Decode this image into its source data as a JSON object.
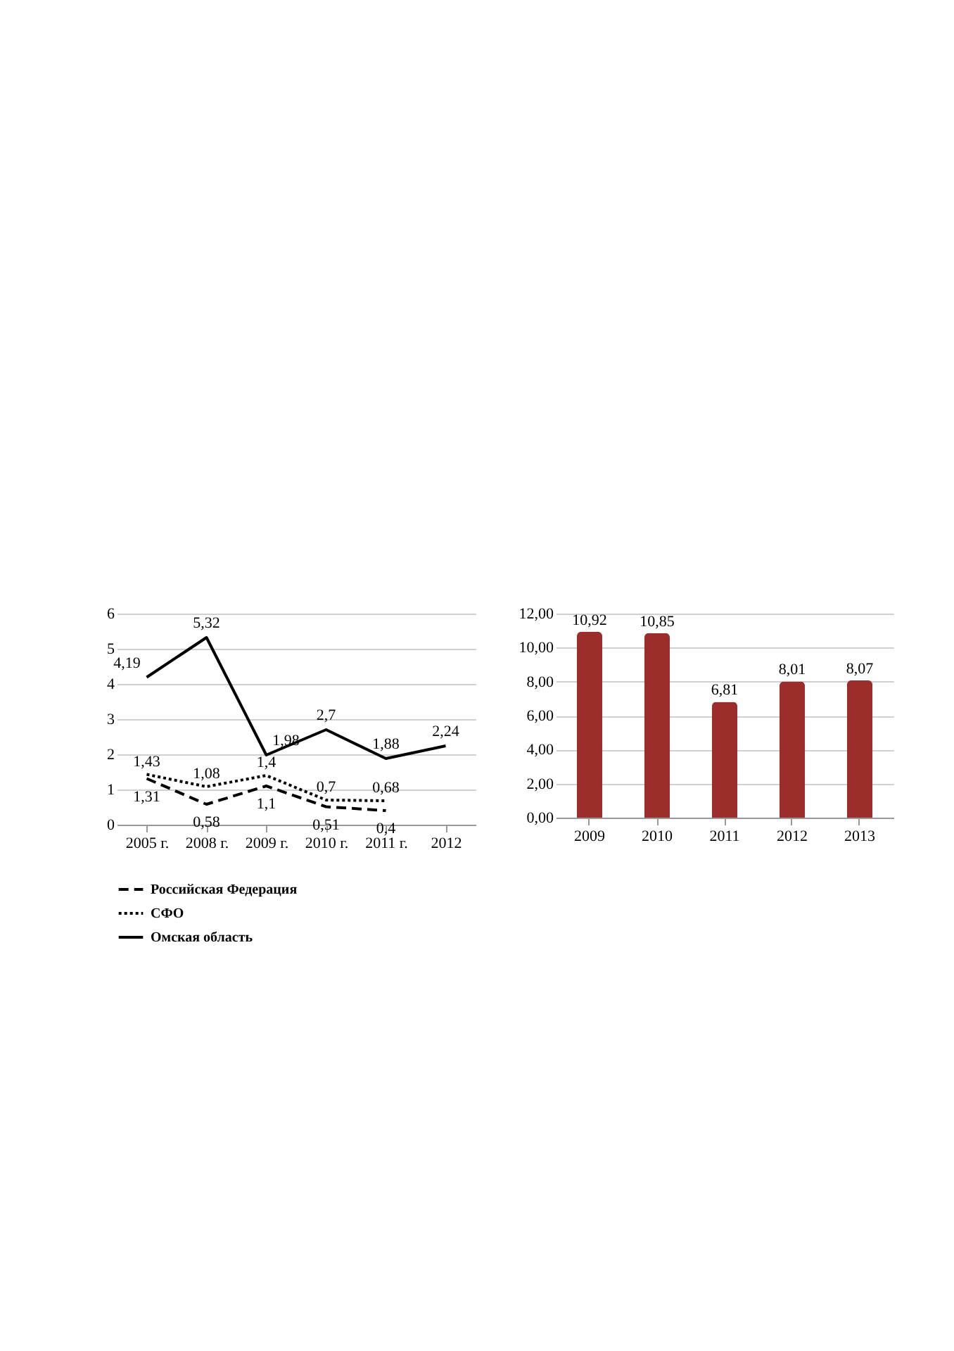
{
  "chart_data": [
    {
      "type": "line",
      "categories": [
        "2005 г.",
        "2008 г.",
        "2009 г.",
        "2010 г.",
        "2011 г.",
        "2012"
      ],
      "ylim": [
        0,
        6
      ],
      "yticks": [
        0,
        1,
        2,
        3,
        4,
        5,
        6
      ],
      "grid": "y",
      "legend": "bottom",
      "marker": "none",
      "series": [
        {
          "name": "Российская Федерация",
          "color": "#000000",
          "line_style": "dashed",
          "values": [
            1.31,
            0.58,
            1.1,
            0.51,
            0.4,
            null
          ],
          "value_labels": [
            "1,31",
            "0,58",
            "1,1",
            "0,51",
            "0,4",
            null
          ]
        },
        {
          "name": "СФО",
          "color": "#000000",
          "line_style": "dotted",
          "values": [
            1.43,
            1.08,
            1.4,
            0.7,
            0.68,
            null
          ],
          "value_labels": [
            "1,43",
            "1,08",
            "1,4",
            "0,7",
            "0,68",
            null
          ]
        },
        {
          "name": "Омская область",
          "color": "#000000",
          "line_style": "solid",
          "values": [
            4.19,
            5.32,
            1.98,
            2.7,
            1.88,
            2.24
          ],
          "value_labels": [
            "4,19",
            "5,32",
            "1,98",
            "2,7",
            "1,88",
            "2,24"
          ]
        }
      ]
    },
    {
      "type": "bar",
      "categories": [
        "2009",
        "2010",
        "2011",
        "2012",
        "2013"
      ],
      "values": [
        10.92,
        10.85,
        6.81,
        8.01,
        8.07
      ],
      "value_labels": [
        "10,92",
        "10,85",
        "6,81",
        "8,01",
        "8,07"
      ],
      "color": "#9b2d2b",
      "ylim": [
        0,
        12
      ],
      "yticks": [
        {
          "value": 0,
          "label": "0,00"
        },
        {
          "value": 2,
          "label": "2,00"
        },
        {
          "value": 4,
          "label": "4,00"
        },
        {
          "value": 6,
          "label": "6,00"
        },
        {
          "value": 8,
          "label": "8,00"
        },
        {
          "value": 10,
          "label": "10,00"
        },
        {
          "value": 12,
          "label": "12,00"
        }
      ],
      "grid": "y",
      "legend": false
    }
  ]
}
